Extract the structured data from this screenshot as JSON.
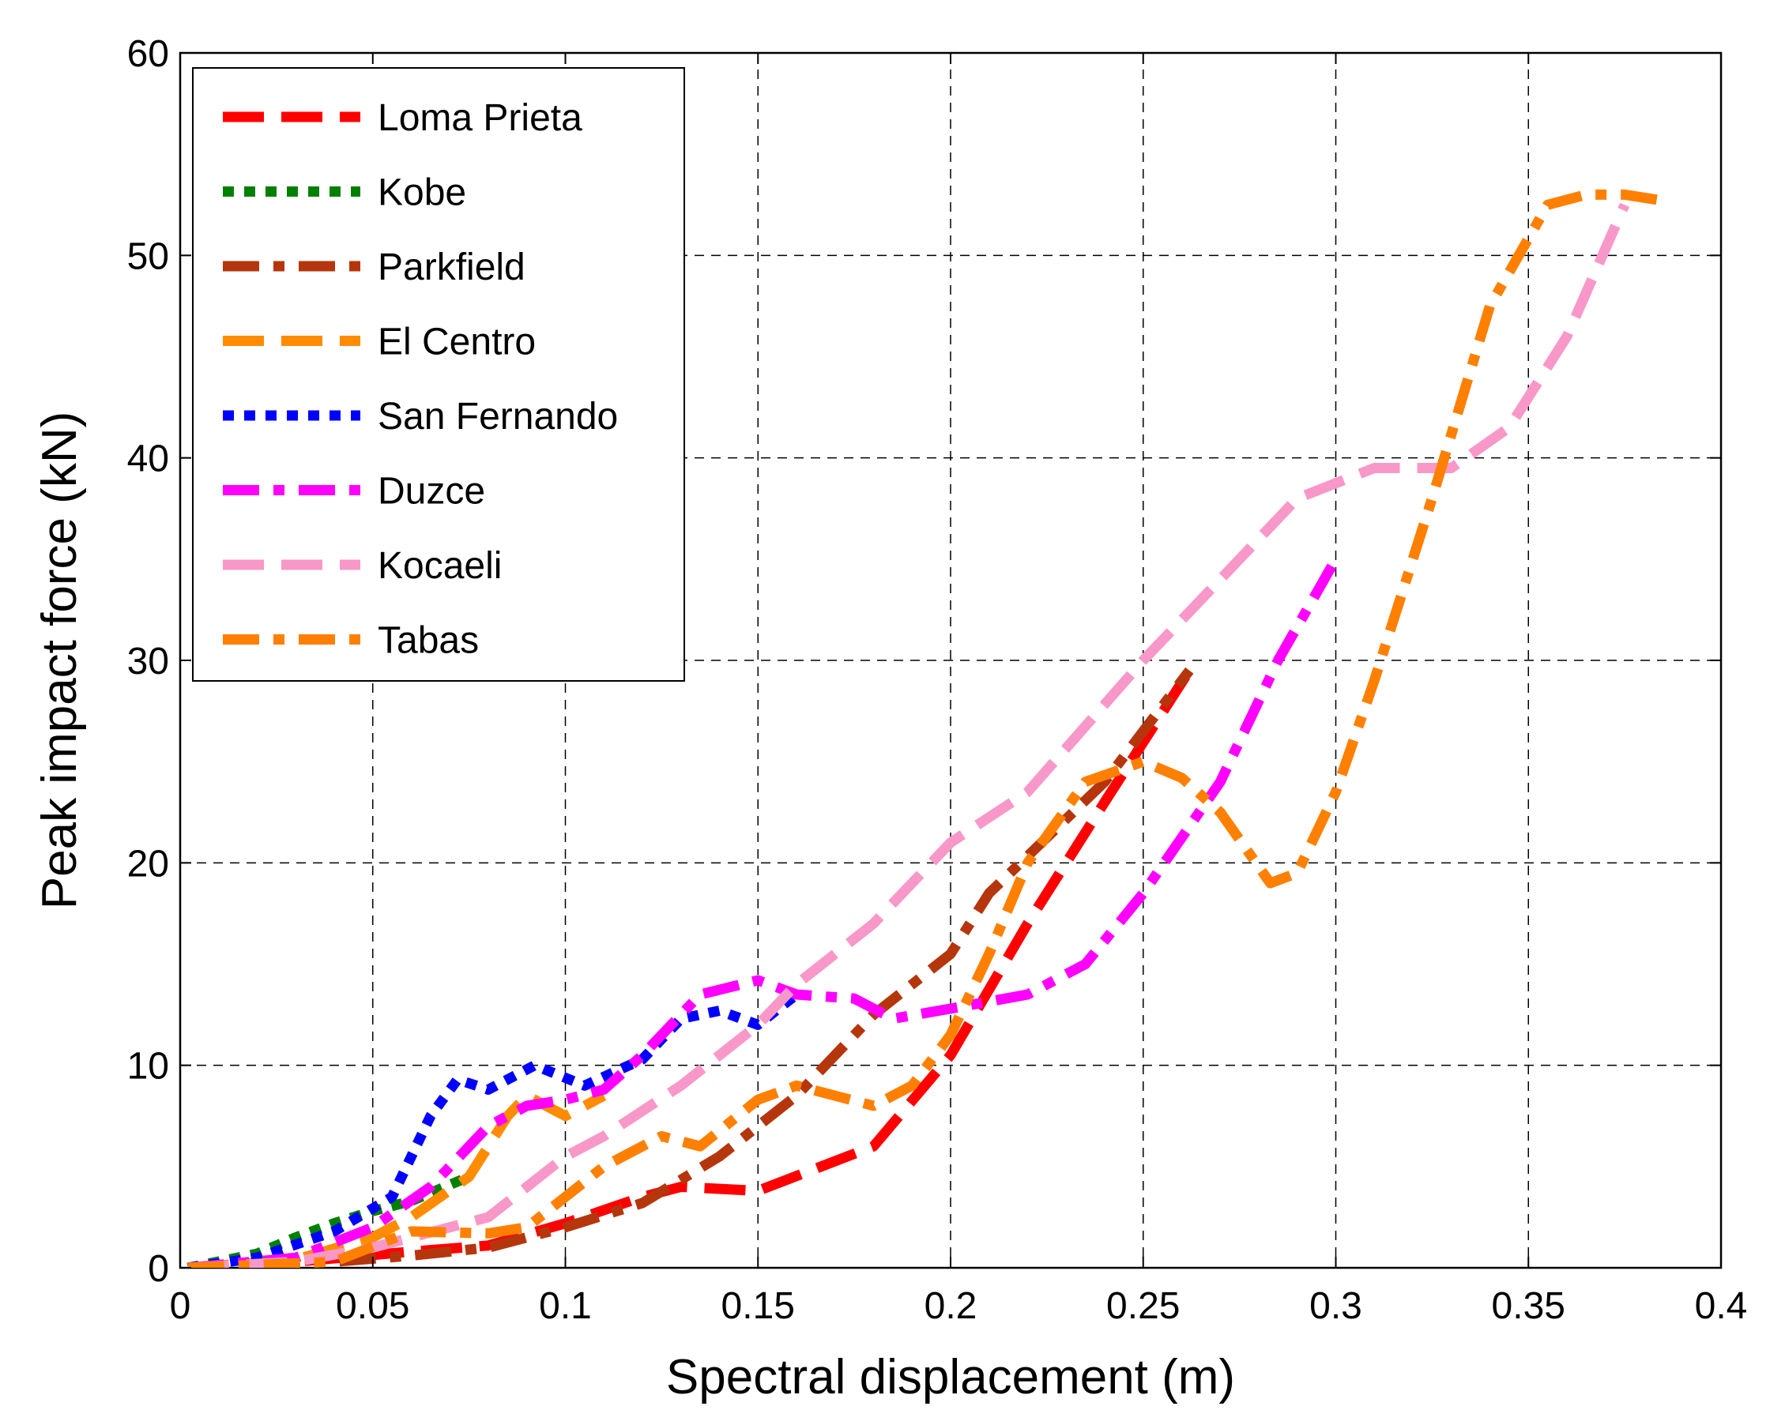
{
  "chart_data": {
    "type": "line",
    "title": "",
    "xlabel": "Spectral displacement (m)",
    "ylabel": "Peak impact force (kN)",
    "xlim": [
      0,
      0.4
    ],
    "ylim": [
      0,
      60
    ],
    "xticks": [
      0,
      0.05,
      0.1,
      0.15,
      0.2,
      0.25,
      0.3,
      0.35,
      0.4
    ],
    "xtick_labels": [
      "0",
      "0.05",
      "0.1",
      "0.15",
      "0.2",
      "0.25",
      "0.3",
      "0.35",
      "0.4"
    ],
    "yticks": [
      0,
      10,
      20,
      30,
      40,
      50,
      60
    ],
    "ytick_labels": [
      "0",
      "10",
      "20",
      "30",
      "40",
      "50",
      "60"
    ],
    "grid": true,
    "legend_position": "top-left",
    "series": [
      {
        "name": "Loma Prieta",
        "color": "#ff0000",
        "style": "dashed",
        "x": [
          0.002,
          0.03,
          0.06,
          0.08,
          0.1,
          0.12,
          0.13,
          0.15,
          0.18,
          0.2,
          0.22,
          0.24,
          0.262
        ],
        "y": [
          0.0,
          0.3,
          0.8,
          1.1,
          2.2,
          3.5,
          4.0,
          3.8,
          6.0,
          10.5,
          17.0,
          23.0,
          29.5
        ]
      },
      {
        "name": "Kobe",
        "color": "#008000",
        "style": "dotted",
        "x": [
          0.002,
          0.02,
          0.03,
          0.04,
          0.05,
          0.06,
          0.075
        ],
        "y": [
          0.0,
          0.7,
          1.5,
          2.2,
          2.8,
          3.3,
          4.5
        ]
      },
      {
        "name": "Parkfield",
        "color": "#b5360c",
        "style": "dashdot",
        "x": [
          0.002,
          0.04,
          0.06,
          0.08,
          0.1,
          0.12,
          0.14,
          0.16,
          0.18,
          0.2,
          0.21,
          0.24,
          0.262
        ],
        "y": [
          0.0,
          0.3,
          0.6,
          1.0,
          2.0,
          3.2,
          5.5,
          8.5,
          12.5,
          15.5,
          18.5,
          24.0,
          29.5
        ]
      },
      {
        "name": "El Centro",
        "color": "#ff8c00",
        "style": "dashed",
        "x": [
          0.002,
          0.03,
          0.05,
          0.06,
          0.075,
          0.085,
          0.09,
          0.1,
          0.11
        ],
        "y": [
          0.0,
          0.4,
          1.5,
          2.5,
          4.5,
          7.5,
          8.5,
          7.5,
          8.5
        ]
      },
      {
        "name": "San Fernando",
        "color": "#0000ff",
        "style": "dotted",
        "x": [
          0.002,
          0.02,
          0.04,
          0.055,
          0.065,
          0.072,
          0.08,
          0.092,
          0.105,
          0.12,
          0.13,
          0.14,
          0.15,
          0.16
        ],
        "y": [
          0.0,
          0.5,
          1.8,
          3.5,
          7.5,
          9.3,
          8.8,
          10.0,
          9.0,
          10.3,
          12.3,
          12.7,
          12.0,
          13.5
        ]
      },
      {
        "name": "Duzce",
        "color": "#ff00ff",
        "style": "dashdot",
        "x": [
          0.002,
          0.03,
          0.05,
          0.065,
          0.08,
          0.09,
          0.1,
          0.11,
          0.12,
          0.135,
          0.15,
          0.16,
          0.175,
          0.185,
          0.2,
          0.22,
          0.235,
          0.25,
          0.27,
          0.285,
          0.3
        ],
        "y": [
          0.0,
          0.5,
          2.0,
          4.0,
          7.0,
          8.0,
          8.3,
          8.8,
          10.5,
          13.5,
          14.2,
          13.5,
          13.3,
          12.3,
          12.8,
          13.5,
          15.0,
          18.5,
          24.0,
          30.0,
          35.0
        ]
      },
      {
        "name": "Kocaeli",
        "color": "#f898c8",
        "style": "dashed",
        "x": [
          0.002,
          0.03,
          0.05,
          0.07,
          0.08,
          0.09,
          0.1,
          0.11,
          0.13,
          0.15,
          0.16,
          0.18,
          0.2,
          0.22,
          0.25,
          0.27,
          0.29,
          0.31,
          0.33,
          0.345,
          0.36,
          0.375
        ],
        "y": [
          0.0,
          0.3,
          1.0,
          2.0,
          2.5,
          4.0,
          5.5,
          6.5,
          9.0,
          12.0,
          14.0,
          17.0,
          21.0,
          23.5,
          30.0,
          34.0,
          38.0,
          39.5,
          39.5,
          41.5,
          46.0,
          52.5
        ]
      },
      {
        "name": "Tabas",
        "color": "#ff8000",
        "style": "dashdot",
        "x": [
          0.002,
          0.04,
          0.06,
          0.08,
          0.09,
          0.1,
          0.11,
          0.125,
          0.135,
          0.15,
          0.16,
          0.17,
          0.18,
          0.19,
          0.2,
          0.21,
          0.22,
          0.235,
          0.25,
          0.26,
          0.27,
          0.283,
          0.29,
          0.3,
          0.31,
          0.325,
          0.34,
          0.355,
          0.365,
          0.375,
          0.385
        ],
        "y": [
          0.0,
          0.3,
          1.8,
          1.7,
          2.0,
          3.5,
          5.0,
          6.5,
          6.0,
          8.3,
          9.0,
          8.5,
          8.0,
          9.0,
          11.5,
          15.5,
          20.0,
          24.0,
          25.0,
          24.2,
          22.5,
          19.0,
          19.5,
          23.5,
          29.0,
          38.0,
          47.5,
          52.5,
          53.0,
          53.0,
          52.7
        ]
      }
    ]
  }
}
